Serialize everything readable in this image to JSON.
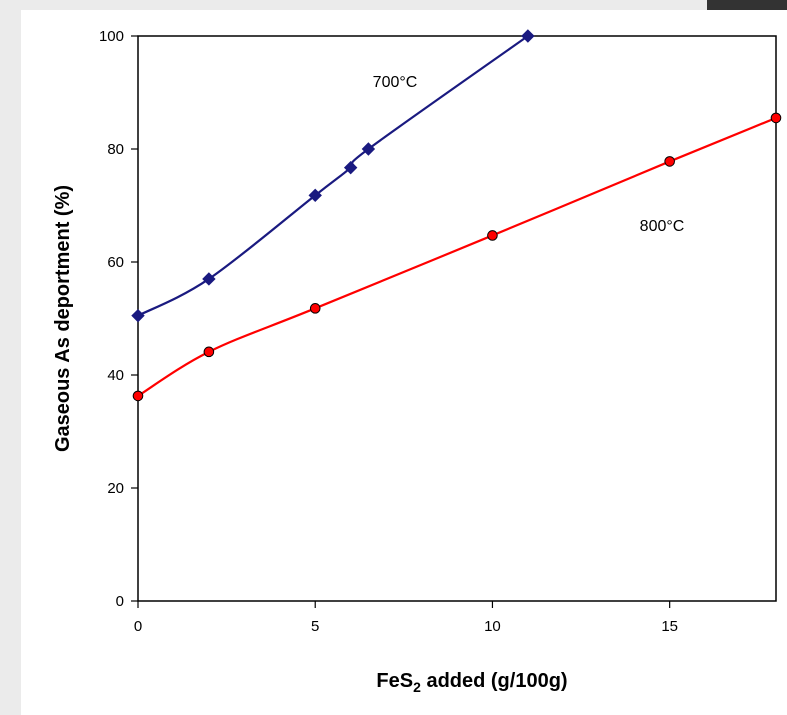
{
  "chart_data": {
    "type": "line",
    "title": "",
    "xlabel_main": "FeS",
    "xlabel_sub": "2",
    "xlabel_rest": " added (g/100g)",
    "ylabel": "Gaseous As deportment (%)",
    "xlim": [
      0,
      18
    ],
    "ylim": [
      0,
      100
    ],
    "x_ticks": [
      0,
      5,
      10,
      15
    ],
    "y_ticks": [
      0,
      20,
      40,
      60,
      80,
      100
    ],
    "grid": false,
    "series": [
      {
        "annotation": "700°C",
        "color": "#1a1a80",
        "marker": "diamond",
        "x": [
          0,
          2,
          5,
          6,
          6.5,
          11
        ],
        "y": [
          50.5,
          57,
          71.8,
          76.7,
          80,
          100
        ]
      },
      {
        "annotation": "800°C",
        "color": "#ff0000",
        "marker": "circle",
        "x": [
          0,
          2,
          5,
          10,
          15,
          18
        ],
        "y": [
          36.3,
          44.1,
          51.8,
          64.7,
          77.8,
          85.5
        ]
      }
    ]
  }
}
